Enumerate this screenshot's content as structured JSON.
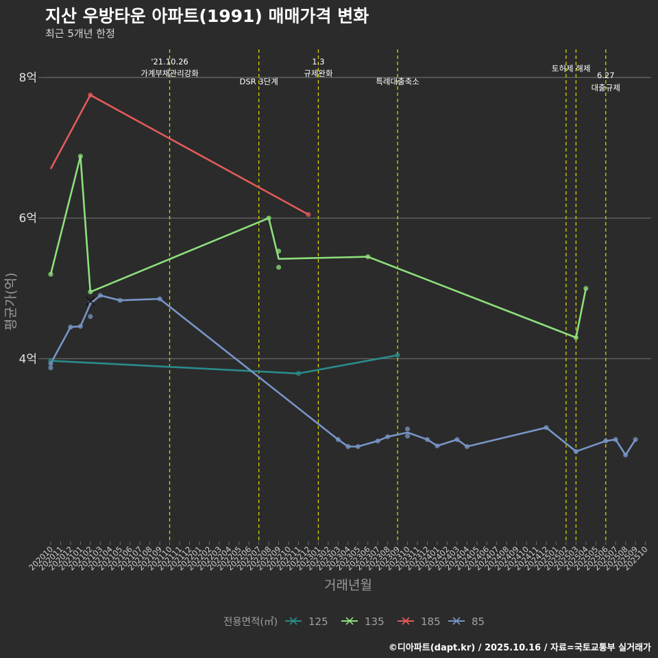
{
  "chart_data": {
    "type": "line",
    "title": "지산 우방타운 아파트(1991) 매매가격 변화",
    "subtitle": "최근 5개년 한정",
    "xlabel": "거래년월",
    "ylabel": "평균가(억)",
    "caption": "©디아파트(dapt.kr) / 2025.10.16 / 자료=국토교통부 실거래가",
    "y_ticks": [
      {
        "value": 4,
        "label": "4억"
      },
      {
        "value": 6,
        "label": "6억"
      },
      {
        "value": 8,
        "label": "8억"
      }
    ],
    "ylim": [
      1.4,
      8.4
    ],
    "categories": [
      "202010",
      "202011",
      "202012",
      "202101",
      "202102",
      "202103",
      "202104",
      "202105",
      "202106",
      "202107",
      "202108",
      "202109",
      "202110",
      "202111",
      "202112",
      "202201",
      "202202",
      "202203",
      "202204",
      "202205",
      "202206",
      "202207",
      "202208",
      "202209",
      "202210",
      "202211",
      "202212",
      "202301",
      "202302",
      "202303",
      "202304",
      "202305",
      "202306",
      "202307",
      "202308",
      "202309",
      "202310",
      "202311",
      "202312",
      "202401",
      "202402",
      "202403",
      "202404",
      "202405",
      "202406",
      "202407",
      "202408",
      "202409",
      "202410",
      "202411",
      "202412",
      "202501",
      "202502",
      "202503",
      "202504",
      "202505",
      "202506",
      "202507",
      "202508",
      "202509",
      "202510"
    ],
    "legend": {
      "title": "전용면적(㎡)",
      "position": "bottom"
    },
    "series": [
      {
        "name": "125",
        "color": "#2a8c8c",
        "line": [
          [
            "202010",
            3.97
          ],
          [
            "202211",
            3.79
          ],
          [
            "202309",
            4.05
          ]
        ],
        "points": [
          [
            "202010",
            3.97
          ],
          [
            "202211",
            3.79
          ],
          [
            "202309",
            4.05
          ]
        ]
      },
      {
        "name": "135",
        "color": "#8ee07c",
        "line": [
          [
            "202010",
            5.2
          ],
          [
            "202101",
            6.88
          ],
          [
            "202102",
            4.95
          ],
          [
            "202208",
            6.0
          ],
          [
            "202209",
            5.42
          ],
          [
            "202306",
            5.45
          ],
          [
            "202503",
            4.3
          ],
          [
            "202504",
            5.0
          ]
        ],
        "points": [
          [
            "202010",
            5.2
          ],
          [
            "202101",
            6.88
          ],
          [
            "202102",
            4.95
          ],
          [
            "202208",
            6.0
          ],
          [
            "202209",
            5.53
          ],
          [
            "202209",
            5.3
          ],
          [
            "202306",
            5.45
          ],
          [
            "202503",
            4.3
          ],
          [
            "202504",
            5.0
          ]
        ]
      },
      {
        "name": "185",
        "color": "#e35b5b",
        "line": [
          [
            "202010",
            6.7
          ],
          [
            "202102",
            7.75
          ],
          [
            "202212",
            6.05
          ]
        ],
        "points": [
          [
            "202102",
            7.75
          ],
          [
            "202212",
            6.05
          ]
        ]
      },
      {
        "name": "85",
        "color": "#7896c8",
        "line": [
          [
            "202010",
            3.93
          ],
          [
            "202012",
            4.45
          ],
          [
            "202101",
            4.46
          ],
          [
            "202102",
            4.78
          ],
          [
            "202103",
            4.9
          ],
          [
            "202105",
            4.83
          ],
          [
            "202109",
            4.85
          ],
          [
            "202303",
            2.85
          ],
          [
            "202304",
            2.75
          ],
          [
            "202305",
            2.75
          ],
          [
            "202307",
            2.83
          ],
          [
            "202308",
            2.89
          ],
          [
            "202310",
            2.95
          ],
          [
            "202312",
            2.85
          ],
          [
            "202401",
            2.76
          ],
          [
            "202403",
            2.85
          ],
          [
            "202404",
            2.75
          ],
          [
            "202412",
            3.02
          ],
          [
            "202503",
            2.68
          ],
          [
            "202506",
            2.83
          ],
          [
            "202507",
            2.85
          ],
          [
            "202508",
            2.63
          ],
          [
            "202509",
            2.85
          ]
        ],
        "points": [
          [
            "202010",
            3.87
          ],
          [
            "202010",
            3.93
          ],
          [
            "202012",
            4.45
          ],
          [
            "202101",
            4.46
          ],
          [
            "202102",
            4.6
          ],
          [
            "202102",
            4.8
          ],
          [
            "202103",
            4.9
          ],
          [
            "202105",
            4.83
          ],
          [
            "202109",
            4.85
          ],
          [
            "202303",
            2.85
          ],
          [
            "202304",
            2.75
          ],
          [
            "202305",
            2.75
          ],
          [
            "202307",
            2.83
          ],
          [
            "202308",
            2.89
          ],
          [
            "202310",
            3.0
          ],
          [
            "202310",
            2.9
          ],
          [
            "202312",
            2.85
          ],
          [
            "202401",
            2.76
          ],
          [
            "202403",
            2.85
          ],
          [
            "202404",
            2.75
          ],
          [
            "202412",
            3.02
          ],
          [
            "202503",
            2.68
          ],
          [
            "202506",
            2.83
          ],
          [
            "202507",
            2.85
          ],
          [
            "202508",
            2.63
          ],
          [
            "202509",
            2.85
          ]
        ],
        "marker": [
          "202102",
          4.82
        ]
      }
    ],
    "events": [
      {
        "x": "202110",
        "lines": [
          "'21.10.26",
          "가계부채관리강화"
        ],
        "row": "top"
      },
      {
        "x": "202207",
        "lines": [
          "DSR 3단계"
        ],
        "row": "low"
      },
      {
        "x": "202301",
        "lines": [
          "1.3",
          "규제완화"
        ],
        "row": "top"
      },
      {
        "x": "202309",
        "lines": [
          "특례대출축소"
        ],
        "row": "low"
      },
      {
        "x": "202502",
        "lines": [
          "토허제 해제"
        ],
        "row": "top2",
        "pair": "202503"
      },
      {
        "x": "202506",
        "lines": [
          "6.27",
          "대출규제"
        ],
        "row": "mid"
      }
    ]
  }
}
